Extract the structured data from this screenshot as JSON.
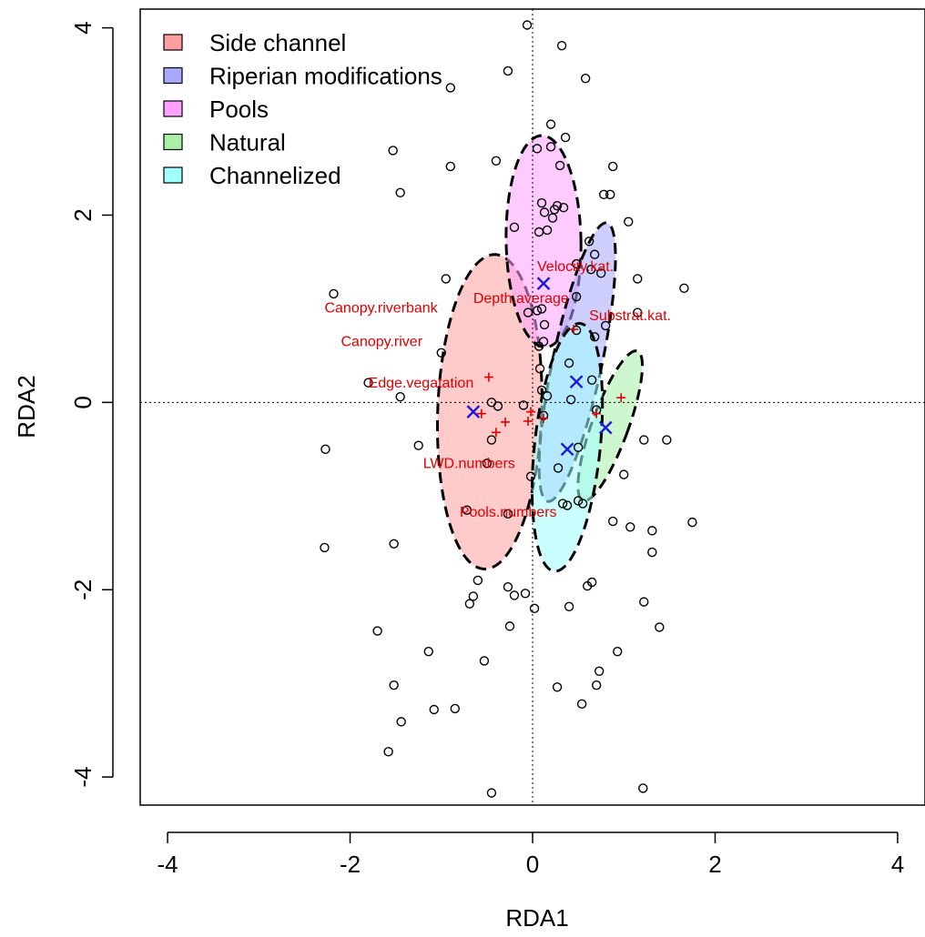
{
  "chart_data": {
    "type": "scatter",
    "title": "",
    "xlabel": "RDA1",
    "ylabel": "RDA2",
    "xlim": [
      -4.3,
      4.3
    ],
    "ylim": [
      -4.3,
      4.2
    ],
    "x_ticks": [
      -4,
      -2,
      0,
      2,
      4
    ],
    "y_ticks": [
      -4,
      -2,
      0,
      2,
      4
    ],
    "x_tick_labels": [
      "-4",
      "-2",
      "0",
      "2",
      "4"
    ],
    "y_tick_labels": [
      "-4",
      "-2",
      "0",
      "2",
      "4"
    ],
    "zero_lines": true,
    "legend": {
      "placement": "top-left",
      "entries": [
        {
          "label": "Side channel",
          "color": "#ff9f9f"
        },
        {
          "label": "Riperian modifications",
          "color": "#a8a8ff"
        },
        {
          "label": "Pools",
          "color": "#ffa0ff"
        },
        {
          "label": "Natural",
          "color": "#a8f0a8"
        },
        {
          "label": "Channelized",
          "color": "#a0ffff"
        }
      ]
    },
    "ellipses": [
      {
        "group": "Side channel",
        "cx": -0.47,
        "cy": -0.1,
        "rx": 0.57,
        "ry": 1.68,
        "angle": 2,
        "color": "#ff9f9f",
        "centroid": [
          -0.65,
          -0.1
        ]
      },
      {
        "group": "Pools",
        "cx": 0.12,
        "cy": 1.72,
        "rx": 0.41,
        "ry": 1.13,
        "angle": -1,
        "color": "#ffa0ff",
        "centroid": [
          0.12,
          1.27
        ]
      },
      {
        "group": "Riperian modifications",
        "cx": 0.49,
        "cy": 0.43,
        "rx": 0.27,
        "ry": 1.52,
        "angle": 12,
        "color": "#a8a8ff",
        "centroid": [
          0.48,
          0.22
        ]
      },
      {
        "group": "Natural",
        "cx": 0.85,
        "cy": -0.25,
        "rx": 0.2,
        "ry": 0.85,
        "angle": 20,
        "color": "#a8f0a8",
        "centroid": [
          0.8,
          -0.27
        ]
      },
      {
        "group": "Channelized",
        "cx": 0.38,
        "cy": -0.48,
        "rx": 0.36,
        "ry": 1.33,
        "angle": 6,
        "color": "#a0ffff",
        "centroid": [
          0.38,
          -0.5
        ]
      }
    ],
    "sites": [
      [
        -0.06,
        4.03
      ],
      [
        0.32,
        3.81
      ],
      [
        -0.27,
        3.54
      ],
      [
        0.58,
        3.46
      ],
      [
        -0.9,
        3.36
      ],
      [
        0.2,
        2.97
      ],
      [
        0.36,
        2.83
      ],
      [
        0.05,
        2.71
      ],
      [
        0.2,
        2.73
      ],
      [
        -1.53,
        2.69
      ],
      [
        -0.4,
        2.58
      ],
      [
        -0.9,
        2.52
      ],
      [
        0.3,
        2.53
      ],
      [
        0.88,
        2.52
      ],
      [
        -1.45,
        2.24
      ],
      [
        0.78,
        2.22
      ],
      [
        0.85,
        2.22
      ],
      [
        0.1,
        2.13
      ],
      [
        0.27,
        2.1
      ],
      [
        0.34,
        2.08
      ],
      [
        0.24,
        2.06
      ],
      [
        0.13,
        2.03
      ],
      [
        0.22,
        1.97
      ],
      [
        1.05,
        1.93
      ],
      [
        -0.2,
        1.87
      ],
      [
        0.16,
        1.84
      ],
      [
        0.07,
        1.82
      ],
      [
        0.62,
        1.72
      ],
      [
        0.68,
        1.58
      ],
      [
        0.48,
        1.48
      ],
      [
        0.64,
        1.42
      ],
      [
        0.75,
        1.38
      ],
      [
        1.15,
        1.32
      ],
      [
        -0.95,
        1.32
      ],
      [
        1.66,
        1.22
      ],
      [
        -2.18,
        1.16
      ],
      [
        0.48,
        1.13
      ],
      [
        0.05,
        0.98
      ],
      [
        0.1,
        1.0
      ],
      [
        -0.05,
        0.96
      ],
      [
        1.15,
        0.96
      ],
      [
        0.13,
        0.83
      ],
      [
        0.8,
        0.82
      ],
      [
        0.48,
        0.77
      ],
      [
        0.12,
        0.65
      ],
      [
        0.07,
        0.6
      ],
      [
        0.68,
        0.7
      ],
      [
        -1.0,
        0.53
      ],
      [
        0.4,
        0.42
      ],
      [
        0.08,
        0.36
      ],
      [
        0.65,
        0.24
      ],
      [
        -1.8,
        0.21
      ],
      [
        0.1,
        0.13
      ],
      [
        -1.45,
        0.06
      ],
      [
        0.16,
        0.07
      ],
      [
        -0.45,
        0.0
      ],
      [
        0.42,
        0.03
      ],
      [
        -0.38,
        -0.04
      ],
      [
        -0.1,
        -0.03
      ],
      [
        0.7,
        -0.08
      ],
      [
        0.12,
        -0.14
      ],
      [
        -0.45,
        -0.4
      ],
      [
        1.22,
        -0.4
      ],
      [
        1.47,
        -0.4
      ],
      [
        -1.25,
        -0.46
      ],
      [
        -2.27,
        -0.5
      ],
      [
        0.5,
        -0.48
      ],
      [
        -0.5,
        -0.65
      ],
      [
        0.28,
        -0.7
      ],
      [
        -0.02,
        -0.79
      ],
      [
        1.0,
        -0.77
      ],
      [
        0.5,
        -1.05
      ],
      [
        0.55,
        -1.08
      ],
      [
        0.33,
        -1.08
      ],
      [
        0.38,
        -1.1
      ],
      [
        -0.27,
        -1.19
      ],
      [
        -0.72,
        -1.15
      ],
      [
        0.88,
        -1.27
      ],
      [
        1.07,
        -1.33
      ],
      [
        1.31,
        -1.37
      ],
      [
        1.75,
        -1.28
      ],
      [
        -1.52,
        -1.51
      ],
      [
        -2.28,
        -1.55
      ],
      [
        1.31,
        -1.6
      ],
      [
        -0.6,
        -1.9
      ],
      [
        0.65,
        -1.92
      ],
      [
        0.6,
        -1.96
      ],
      [
        -0.27,
        -1.97
      ],
      [
        -0.2,
        -2.06
      ],
      [
        -0.65,
        -2.07
      ],
      [
        -0.08,
        -2.04
      ],
      [
        1.22,
        -2.13
      ],
      [
        -0.69,
        -2.15
      ],
      [
        0.4,
        -2.18
      ],
      [
        0.02,
        -2.2
      ],
      [
        -0.25,
        -2.39
      ],
      [
        1.39,
        -2.4
      ],
      [
        -1.7,
        -2.44
      ],
      [
        -1.14,
        -2.66
      ],
      [
        0.93,
        -2.66
      ],
      [
        -0.53,
        -2.76
      ],
      [
        0.73,
        -2.87
      ],
      [
        -1.52,
        -3.02
      ],
      [
        0.27,
        -3.04
      ],
      [
        0.7,
        -3.02
      ],
      [
        -1.08,
        -3.28
      ],
      [
        -0.85,
        -3.27
      ],
      [
        0.54,
        -3.22
      ],
      [
        -1.44,
        -3.41
      ],
      [
        -1.58,
        -3.73
      ],
      [
        1.21,
        -4.12
      ],
      [
        -0.45,
        -4.17
      ]
    ],
    "species_markers": [
      [
        -0.48,
        0.27
      ],
      [
        -0.3,
        -0.21
      ],
      [
        -0.56,
        -0.12
      ],
      [
        -0.4,
        -0.32
      ],
      [
        -0.05,
        -0.2
      ],
      [
        0.12,
        -0.17
      ],
      [
        0.7,
        -0.12
      ],
      [
        0.97,
        0.05
      ],
      [
        0.45,
        0.78
      ],
      [
        -0.02,
        -0.1
      ]
    ],
    "env_labels": [
      {
        "text": "Velocity.kat.",
        "x": 0.05,
        "y": 1.4
      },
      {
        "text": "Depth.average",
        "x": -0.65,
        "y": 1.06
      },
      {
        "text": "Canopy.riverbank",
        "x": -2.28,
        "y": 0.96
      },
      {
        "text": "Substrat.kat.",
        "x": 0.62,
        "y": 0.88
      },
      {
        "text": "Canopy.river",
        "x": -2.1,
        "y": 0.6
      },
      {
        "text": "Edge.vegatation",
        "x": -1.8,
        "y": 0.16
      },
      {
        "text": "LWD.numbers",
        "x": -1.2,
        "y": -0.7
      },
      {
        "text": "Pools.numbers",
        "x": -0.8,
        "y": -1.22
      }
    ]
  }
}
